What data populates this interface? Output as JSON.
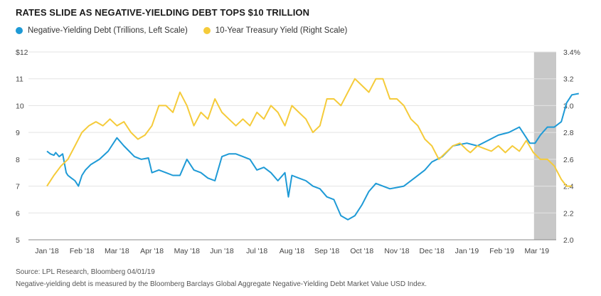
{
  "chart_data": {
    "type": "line",
    "title": "RATES SLIDE AS NEGATIVE-YIELDING DEBT TOPS $10 TRILLION",
    "categories": [
      "Jan '18",
      "Feb '18",
      "Mar '18",
      "Apr '18",
      "May '18",
      "Jun '18",
      "Jul '18",
      "Aug '18",
      "Sep '18",
      "Oct '18",
      "Nov '18",
      "Dec '18",
      "Jan '19",
      "Feb '19",
      "Mar '19"
    ],
    "left_axis": {
      "ylim": [
        5,
        12
      ],
      "ticks": [
        "$12",
        "11",
        "10",
        "9",
        "8",
        "7",
        "6",
        "5"
      ]
    },
    "right_axis": {
      "ylim": [
        2.0,
        3.4
      ],
      "ticks": [
        "3.4%",
        "3.2",
        "3.0",
        "2.8",
        "2.6",
        "2.4",
        "2.2",
        "2.0"
      ]
    },
    "shaded_region": {
      "start": "Mar '19",
      "end": "Apr '19"
    },
    "grid": "horizontal",
    "series": [
      {
        "name": "Negative-Yielding Debt (Trillions, Left Scale)",
        "axis": "left",
        "color": "#1e9ad6",
        "x": [
          0,
          0.1,
          0.2,
          0.25,
          0.35,
          0.45,
          0.55,
          0.6,
          0.7,
          0.8,
          0.9,
          1.0,
          1.1,
          1.25,
          1.5,
          1.75,
          2.0,
          2.2,
          2.35,
          2.5,
          2.7,
          2.9,
          3.0,
          3.2,
          3.4,
          3.6,
          3.8,
          4.0,
          4.2,
          4.4,
          4.6,
          4.8,
          5.0,
          5.2,
          5.4,
          5.6,
          5.8,
          6.0,
          6.2,
          6.4,
          6.6,
          6.8,
          6.9,
          7.0,
          7.2,
          7.4,
          7.6,
          7.8,
          8.0,
          8.2,
          8.4,
          8.6,
          8.8,
          9.0,
          9.2,
          9.4,
          9.6,
          9.8,
          10.0,
          10.2,
          10.5,
          10.8,
          11.0,
          11.3,
          11.6,
          12.0,
          12.3,
          12.6,
          12.9,
          13.2,
          13.5,
          13.8,
          13.95,
          14.1,
          14.3,
          14.5,
          14.7,
          14.85,
          15.0,
          15.2
        ],
        "values": [
          8.3,
          8.2,
          8.15,
          8.25,
          8.1,
          8.2,
          7.5,
          7.4,
          7.3,
          7.2,
          7.0,
          7.4,
          7.6,
          7.8,
          8.0,
          8.3,
          8.8,
          8.5,
          8.3,
          8.1,
          8.0,
          8.05,
          7.5,
          7.6,
          7.5,
          7.4,
          7.4,
          8.0,
          7.6,
          7.5,
          7.3,
          7.2,
          8.1,
          8.2,
          8.2,
          8.1,
          8.0,
          7.6,
          7.7,
          7.5,
          7.2,
          7.5,
          6.6,
          7.4,
          7.3,
          7.2,
          7.0,
          6.9,
          6.6,
          6.5,
          5.9,
          5.75,
          5.9,
          6.3,
          6.8,
          7.1,
          7.0,
          6.9,
          6.95,
          7.0,
          7.3,
          7.6,
          7.9,
          8.1,
          8.5,
          8.6,
          8.5,
          8.7,
          8.9,
          9.0,
          9.2,
          8.6,
          8.6,
          8.9,
          9.2,
          9.2,
          9.4,
          10.1,
          10.4,
          10.45
        ]
      },
      {
        "name": "10-Year Treasury Yield (Right Scale)",
        "axis": "right",
        "color": "#f5cb3a",
        "x": [
          0,
          0.2,
          0.4,
          0.6,
          0.8,
          1.0,
          1.2,
          1.4,
          1.6,
          1.8,
          2.0,
          2.2,
          2.4,
          2.6,
          2.8,
          3.0,
          3.2,
          3.4,
          3.6,
          3.8,
          4.0,
          4.2,
          4.4,
          4.6,
          4.8,
          5.0,
          5.2,
          5.4,
          5.6,
          5.8,
          6.0,
          6.2,
          6.4,
          6.6,
          6.8,
          7.0,
          7.2,
          7.4,
          7.6,
          7.8,
          8.0,
          8.2,
          8.4,
          8.6,
          8.8,
          9.0,
          9.2,
          9.4,
          9.6,
          9.8,
          10.0,
          10.2,
          10.4,
          10.6,
          10.8,
          11.0,
          11.2,
          11.4,
          11.6,
          11.8,
          12.0,
          12.1,
          12.3,
          12.5,
          12.7,
          12.9,
          13.1,
          13.3,
          13.5,
          13.7,
          13.9,
          14.1,
          14.3,
          14.5,
          14.7,
          14.85,
          15.0
        ],
        "values": [
          2.4,
          2.48,
          2.55,
          2.6,
          2.7,
          2.8,
          2.85,
          2.88,
          2.85,
          2.9,
          2.85,
          2.88,
          2.8,
          2.75,
          2.78,
          2.85,
          3.0,
          3.0,
          2.95,
          3.1,
          3.0,
          2.85,
          2.95,
          2.9,
          3.05,
          2.95,
          2.9,
          2.85,
          2.9,
          2.85,
          2.95,
          2.9,
          3.0,
          2.95,
          2.85,
          3.0,
          2.95,
          2.9,
          2.8,
          2.85,
          3.05,
          3.05,
          3.0,
          3.1,
          3.2,
          3.15,
          3.1,
          3.2,
          3.2,
          3.05,
          3.05,
          3.0,
          2.9,
          2.85,
          2.75,
          2.7,
          2.6,
          2.65,
          2.7,
          2.72,
          2.67,
          2.65,
          2.7,
          2.68,
          2.66,
          2.7,
          2.65,
          2.7,
          2.66,
          2.74,
          2.65,
          2.6,
          2.6,
          2.55,
          2.45,
          2.4,
          2.4
        ]
      }
    ]
  },
  "source": "Source: LPL Research, Bloomberg 04/01/19",
  "note": "Negative-yielding debt is measured by the Bloomberg Barclays Global Aggregate Negative-Yielding Debt Market Value USD Index."
}
